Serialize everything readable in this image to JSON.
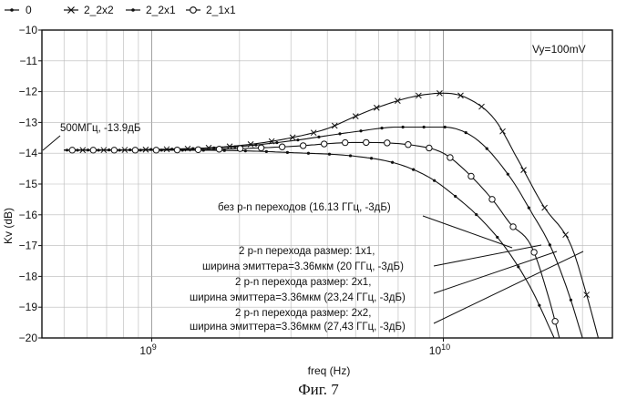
{
  "chart_data": {
    "type": "line",
    "x_scale": "log",
    "xlabel": "freq (Hz)",
    "ylabel": "Kv (dB)",
    "xlim": [
      420000000,
      38000000000
    ],
    "ylim": [
      -20,
      -10
    ],
    "x_tick_labels": [
      {
        "value": 1000000000,
        "base": "10",
        "exp": "9"
      },
      {
        "value": 10000000000,
        "base": "10",
        "exp": "10"
      }
    ],
    "y_ticks": [
      -10,
      -11,
      -12,
      -13,
      -14,
      -15,
      -16,
      -17,
      -18,
      -19,
      -20
    ],
    "grid": true,
    "legend_position": "top-left",
    "series": [
      {
        "name": "0",
        "marker": "dot",
        "x": [
          500000000,
          1000000000,
          2000000000,
          3000000000,
          5000000000,
          7000000000,
          9000000000,
          11000000000,
          13000000000,
          16130000000,
          20000000000,
          24000000000
        ],
        "y": [
          -13.9,
          -13.9,
          -13.92,
          -13.98,
          -14.1,
          -14.35,
          -14.8,
          -15.4,
          -16.0,
          -17.0,
          -18.4,
          -20.0
        ]
      },
      {
        "name": "2_2x2",
        "marker": "x",
        "x": [
          500000000,
          1000000000,
          2000000000,
          3000000000,
          4000000000,
          5000000000,
          6000000000,
          8000000000,
          10000000000,
          12000000000,
          15000000000,
          18000000000,
          22000000000,
          27430000000,
          31000000000,
          34000000000
        ],
        "y": [
          -13.9,
          -13.88,
          -13.75,
          -13.5,
          -13.2,
          -12.8,
          -12.5,
          -12.15,
          -12.05,
          -12.2,
          -12.9,
          -14.2,
          -15.7,
          -17.0,
          -18.6,
          -20.0
        ]
      },
      {
        "name": "2_2x1",
        "marker": "dot",
        "x": [
          500000000,
          1000000000,
          2000000000,
          3000000000,
          5000000000,
          7000000000,
          10000000000,
          13000000000,
          17000000000,
          20000000000,
          23240000000,
          27000000000,
          30000000000
        ],
        "y": [
          -13.9,
          -13.88,
          -13.78,
          -13.6,
          -13.3,
          -13.15,
          -13.15,
          -13.55,
          -14.8,
          -15.9,
          -17.0,
          -18.6,
          -20.0
        ]
      },
      {
        "name": "2_1x1",
        "marker": "circle",
        "x": [
          500000000,
          1000000000,
          2000000000,
          3000000000,
          5000000000,
          8000000000,
          10000000000,
          12000000000,
          15000000000,
          17000000000,
          20000000000,
          23000000000,
          25000000000
        ],
        "y": [
          -13.9,
          -13.9,
          -13.85,
          -13.78,
          -13.65,
          -13.75,
          -14.0,
          -14.6,
          -15.6,
          -16.3,
          -17.0,
          -18.7,
          -20.0
        ]
      }
    ],
    "annotations": {
      "vy": "Vy=100mV",
      "point": "500МГц, -13.9дБ",
      "a0": "без p-n переходов (16.13 ГГц, -3дБ)",
      "a11_line1": "2 p-n перехода размер: 1x1,",
      "a11_line2": "ширина эмиттера=3.36мкм (20 ГГц, -3дБ)",
      "a21_line1": "2 p-n перехода размер: 2x1,",
      "a21_line2": "ширина эмиттера=3.36мкм (23,24 ГГц, -3дБ)",
      "a22_line1": "2 p-n перехода размер: 2x2,",
      "a22_line2": "ширина эмиттера=3.36мкм (27,43 ГГц, -3дБ)"
    }
  },
  "caption": "Фиг. 7"
}
